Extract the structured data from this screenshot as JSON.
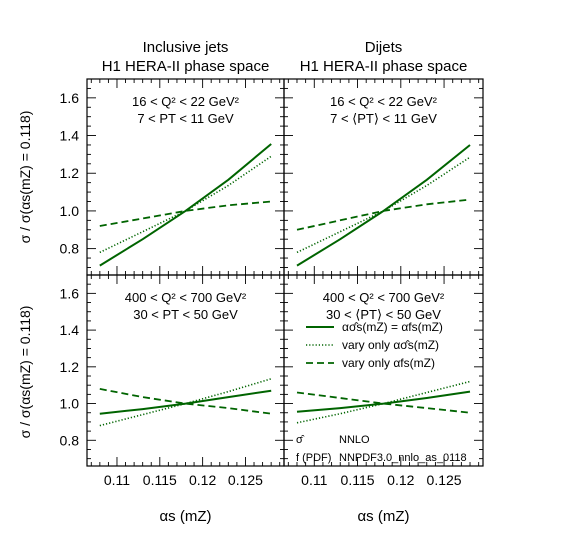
{
  "figure": {
    "columns": [
      {
        "title_line1": "Inclusive jets",
        "title_line2": "H1 HERA-II phase space"
      },
      {
        "title_line1": "Dijets",
        "title_line2": "H1 HERA-II phase space"
      }
    ],
    "xlabel": "αs (mZ)",
    "ylabel": "σ / σ(αs(mZ) = 0.118)"
  },
  "chart_data": [
    {
      "type": "line",
      "panel": "top-left",
      "annotation": [
        "16 < Q² < 22 GeV²",
        "7 < PT < 11 GeV"
      ],
      "xlim": [
        0.1065,
        0.1295
      ],
      "ylim": [
        0.66,
        1.7
      ],
      "xticks": [
        0.11,
        0.115,
        0.12,
        0.125
      ],
      "xtick_labels": [
        "0.11",
        "0.115",
        "0.12",
        "0.125"
      ],
      "yticks": [
        0.8,
        1.0,
        1.2,
        1.4,
        1.6
      ],
      "ytick_labels": [
        "0.8",
        "1.0",
        "1.2",
        "1.4",
        "1.6"
      ],
      "series": [
        {
          "style": "solid",
          "color": "#006400",
          "x": [
            0.108,
            0.113,
            0.118,
            0.123,
            0.128
          ],
          "y": [
            0.71,
            0.85,
            1.0,
            1.165,
            1.355
          ]
        },
        {
          "style": "dotted",
          "color": "#006400",
          "x": [
            0.108,
            0.113,
            0.118,
            0.123,
            0.128
          ],
          "y": [
            0.78,
            0.89,
            1.0,
            1.135,
            1.29
          ]
        },
        {
          "style": "dashed",
          "color": "#006400",
          "x": [
            0.108,
            0.113,
            0.118,
            0.123,
            0.128
          ],
          "y": [
            0.92,
            0.96,
            1.0,
            1.03,
            1.05
          ]
        }
      ]
    },
    {
      "type": "line",
      "panel": "top-right",
      "annotation": [
        "16 < Q² < 22 GeV²",
        "7 < ⟨PT⟩ < 11 GeV"
      ],
      "xlim": [
        0.1065,
        0.1295
      ],
      "ylim": [
        0.66,
        1.7
      ],
      "xticks": [
        0.11,
        0.115,
        0.12,
        0.125
      ],
      "xtick_labels": [
        "0.11",
        "0.115",
        "0.12",
        "0.125"
      ],
      "yticks": [
        0.8,
        1.0,
        1.2,
        1.4,
        1.6
      ],
      "ytick_labels": [
        "0.8",
        "1.0",
        "1.2",
        "1.4",
        "1.6"
      ],
      "series": [
        {
          "style": "solid",
          "color": "#006400",
          "x": [
            0.108,
            0.113,
            0.118,
            0.123,
            0.128
          ],
          "y": [
            0.71,
            0.85,
            1.0,
            1.165,
            1.35
          ]
        },
        {
          "style": "dotted",
          "color": "#006400",
          "x": [
            0.108,
            0.113,
            0.118,
            0.123,
            0.128
          ],
          "y": [
            0.78,
            0.89,
            1.0,
            1.135,
            1.285
          ]
        },
        {
          "style": "dashed",
          "color": "#006400",
          "x": [
            0.108,
            0.113,
            0.118,
            0.123,
            0.128
          ],
          "y": [
            0.9,
            0.95,
            1.0,
            1.035,
            1.06
          ]
        }
      ]
    },
    {
      "type": "line",
      "panel": "bottom-left",
      "annotation": [
        "400 < Q² < 700 GeV²",
        "30 < PT < 50 GeV"
      ],
      "xlim": [
        0.1065,
        0.1295
      ],
      "ylim": [
        0.66,
        1.7
      ],
      "xticks": [
        0.11,
        0.115,
        0.12,
        0.125
      ],
      "xtick_labels": [
        "0.11",
        "0.115",
        "0.12",
        "0.125"
      ],
      "yticks": [
        0.8,
        1.0,
        1.2,
        1.4,
        1.6
      ],
      "ytick_labels": [
        "0.8",
        "1.0",
        "1.2",
        "1.4",
        "1.6"
      ],
      "series": [
        {
          "style": "solid",
          "color": "#006400",
          "x": [
            0.108,
            0.113,
            0.118,
            0.123,
            0.128
          ],
          "y": [
            0.945,
            0.97,
            1.0,
            1.035,
            1.07
          ]
        },
        {
          "style": "dotted",
          "color": "#006400",
          "x": [
            0.108,
            0.113,
            0.118,
            0.123,
            0.128
          ],
          "y": [
            0.88,
            0.94,
            1.0,
            1.065,
            1.135
          ]
        },
        {
          "style": "dashed",
          "color": "#006400",
          "x": [
            0.108,
            0.113,
            0.118,
            0.123,
            0.128
          ],
          "y": [
            1.08,
            1.035,
            1.0,
            0.975,
            0.945
          ]
        }
      ]
    },
    {
      "type": "line",
      "panel": "bottom-right",
      "annotation": [
        "400 < Q² < 700 GeV²",
        "30 < ⟨PT⟩ < 50 GeV"
      ],
      "xlim": [
        0.1065,
        0.1295
      ],
      "ylim": [
        0.66,
        1.7
      ],
      "xticks": [
        0.11,
        0.115,
        0.12,
        0.125
      ],
      "xtick_labels": [
        "0.11",
        "0.115",
        "0.12",
        "0.125"
      ],
      "yticks": [
        0.8,
        1.0,
        1.2,
        1.4,
        1.6
      ],
      "ytick_labels": [
        "0.8",
        "1.0",
        "1.2",
        "1.4",
        "1.6"
      ],
      "series": [
        {
          "style": "solid",
          "color": "#006400",
          "x": [
            0.108,
            0.113,
            0.118,
            0.123,
            0.128
          ],
          "y": [
            0.955,
            0.975,
            1.0,
            1.03,
            1.065
          ]
        },
        {
          "style": "dotted",
          "color": "#006400",
          "x": [
            0.108,
            0.113,
            0.118,
            0.123,
            0.128
          ],
          "y": [
            0.895,
            0.945,
            1.0,
            1.06,
            1.12
          ]
        },
        {
          "style": "dashed",
          "color": "#006400",
          "x": [
            0.108,
            0.113,
            0.118,
            0.123,
            0.128
          ],
          "y": [
            1.06,
            1.03,
            1.0,
            0.975,
            0.95
          ]
        }
      ],
      "legend": {
        "placement": "right-middle",
        "entries": [
          {
            "style": "solid",
            "label": "ασ̂s(mZ) = αfs(mZ)"
          },
          {
            "style": "dotted",
            "label": "vary only ασ̂s(mZ)"
          },
          {
            "style": "dashed",
            "label": "vary only αfs(mZ)"
          }
        ]
      },
      "notes": [
        {
          "key": "σ̂",
          "value": "NNLO"
        },
        {
          "key": "f (PDF)",
          "value": "NNPDF3.0_nnlo_as_0118"
        }
      ]
    }
  ]
}
